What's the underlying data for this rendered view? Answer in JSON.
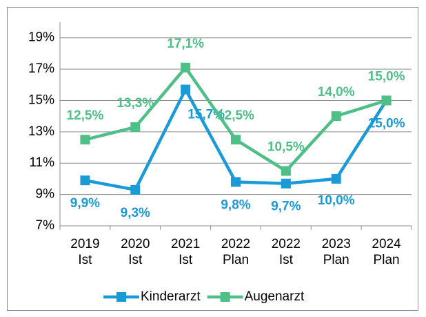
{
  "chart_data": {
    "type": "line",
    "categories": [
      [
        "2019",
        "Ist"
      ],
      [
        "2020",
        "Ist"
      ],
      [
        "2021",
        "Ist"
      ],
      [
        "2022",
        "Plan"
      ],
      [
        "2022",
        "Ist"
      ],
      [
        "2023",
        "Plan"
      ],
      [
        "2024",
        "Plan"
      ]
    ],
    "series": [
      {
        "name": "Kinderarzt",
        "color": "#1a9ad6",
        "values": [
          9.9,
          9.3,
          15.7,
          9.8,
          9.7,
          10.0,
          15.0
        ],
        "value_labels": [
          "9,9%",
          "9,3%",
          "15,7%",
          "9,8%",
          "9,7%",
          "10,0%",
          "15,0%"
        ]
      },
      {
        "name": "Augenarzt",
        "color": "#4dbf87",
        "values": [
          12.5,
          13.3,
          17.1,
          12.5,
          10.5,
          14.0,
          15.0
        ],
        "value_labels": [
          "12,5%",
          "13,3%",
          "17,1%",
          "12,5%",
          "10,5%",
          "14,0%",
          "15,0%"
        ]
      }
    ],
    "ylim": [
      7,
      20
    ],
    "yticks": [
      {
        "value": 7,
        "label": "7%"
      },
      {
        "value": 9,
        "label": "9%"
      },
      {
        "value": 11,
        "label": "11%"
      },
      {
        "value": 13,
        "label": "13%"
      },
      {
        "value": 15,
        "label": "15%"
      },
      {
        "value": 17,
        "label": "17%"
      },
      {
        "value": 19,
        "label": "19%"
      }
    ],
    "grid": true,
    "legend": "bottom"
  }
}
